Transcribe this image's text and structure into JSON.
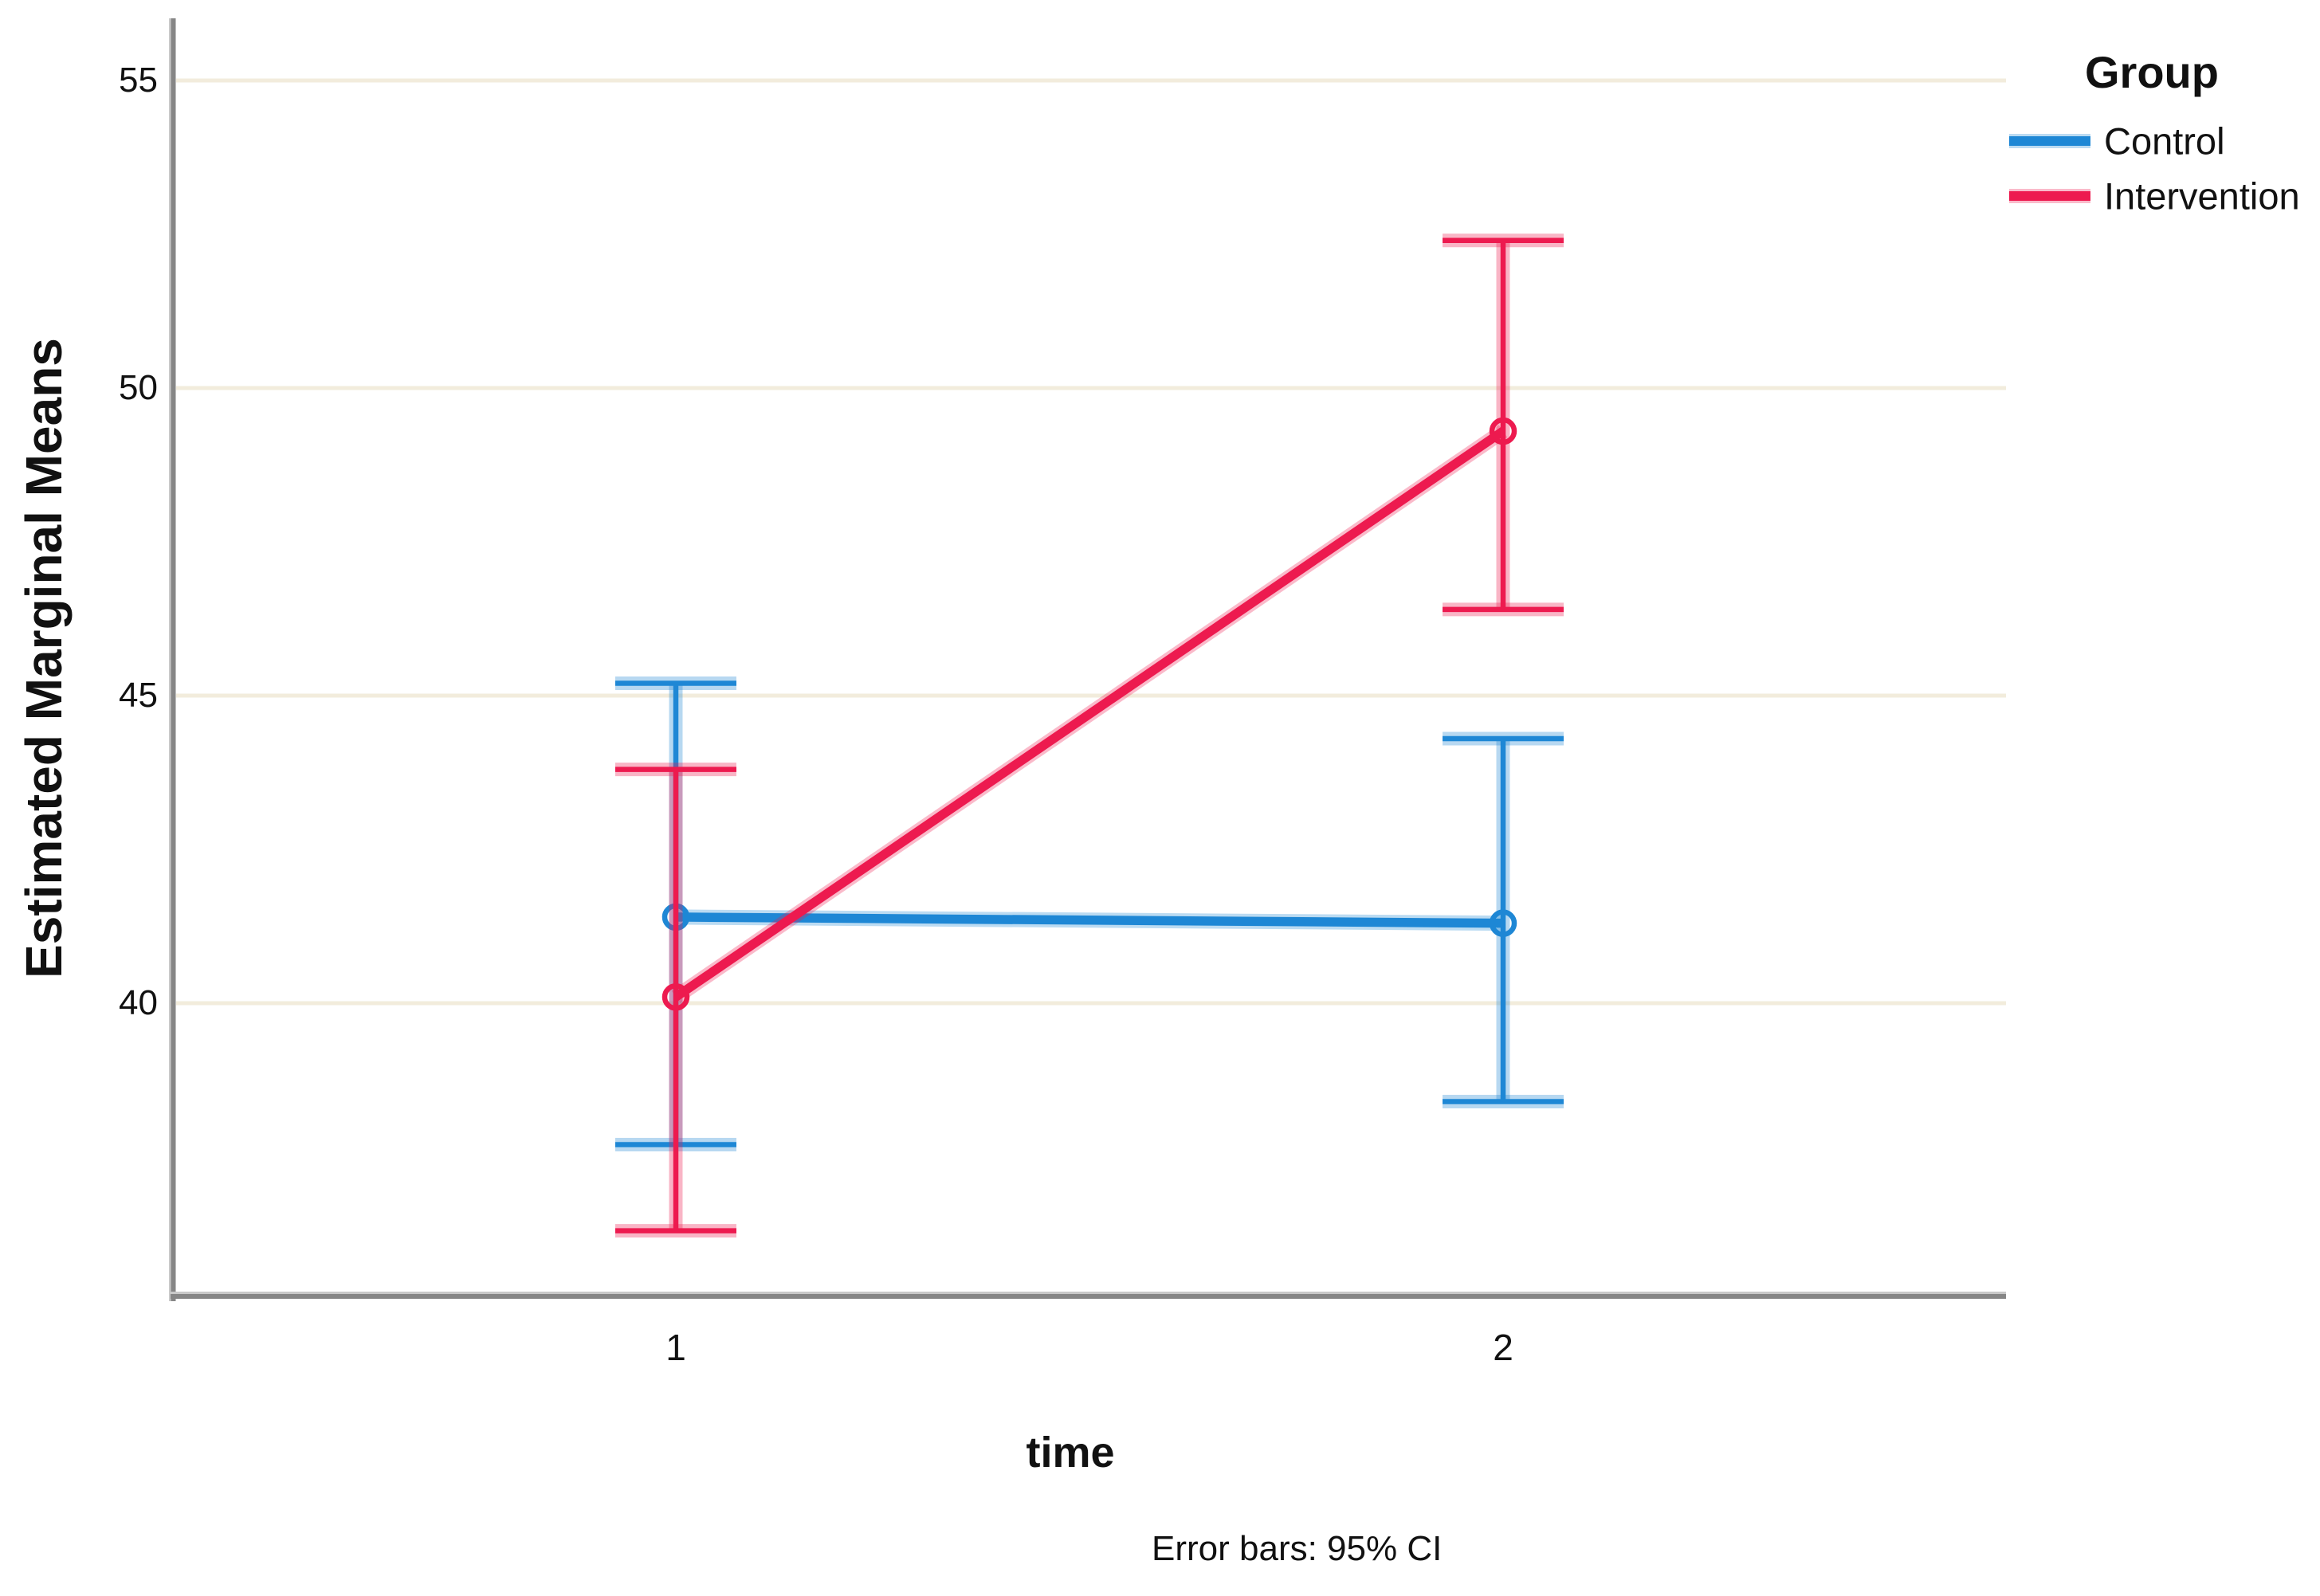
{
  "chart_data": {
    "type": "line",
    "title": "",
    "xlabel": "time",
    "ylabel": "Estimated Marginal Means",
    "footnote": "Error bars: 95% CI",
    "legend_title": "Group",
    "legend_position": "top-right",
    "grid": "horizontal",
    "background_color": "#ffffff",
    "gridline_color": "#f2ecdc",
    "axis_color": "#868686",
    "axis_shadow_color": "#c9c9c9",
    "text_color": "#111111",
    "categories": [
      "1",
      "2"
    ],
    "yticks": [
      55,
      50,
      45,
      40
    ],
    "ylim": [
      35.2,
      56.0
    ],
    "series": [
      {
        "name": "Control",
        "color": "#1E87D5",
        "marker": "open-circle",
        "means": [
          41.4,
          41.3
        ],
        "ci_low": [
          37.7,
          38.4
        ],
        "ci_high": [
          45.2,
          44.3
        ]
      },
      {
        "name": "Intervention",
        "color": "#ED1A4F",
        "marker": "open-circle",
        "means": [
          40.1,
          49.3
        ],
        "ci_low": [
          36.3,
          46.4
        ],
        "ci_high": [
          43.8,
          52.4
        ]
      }
    ],
    "error_bar_note": "95% confidence intervals, capped I-beam style"
  }
}
